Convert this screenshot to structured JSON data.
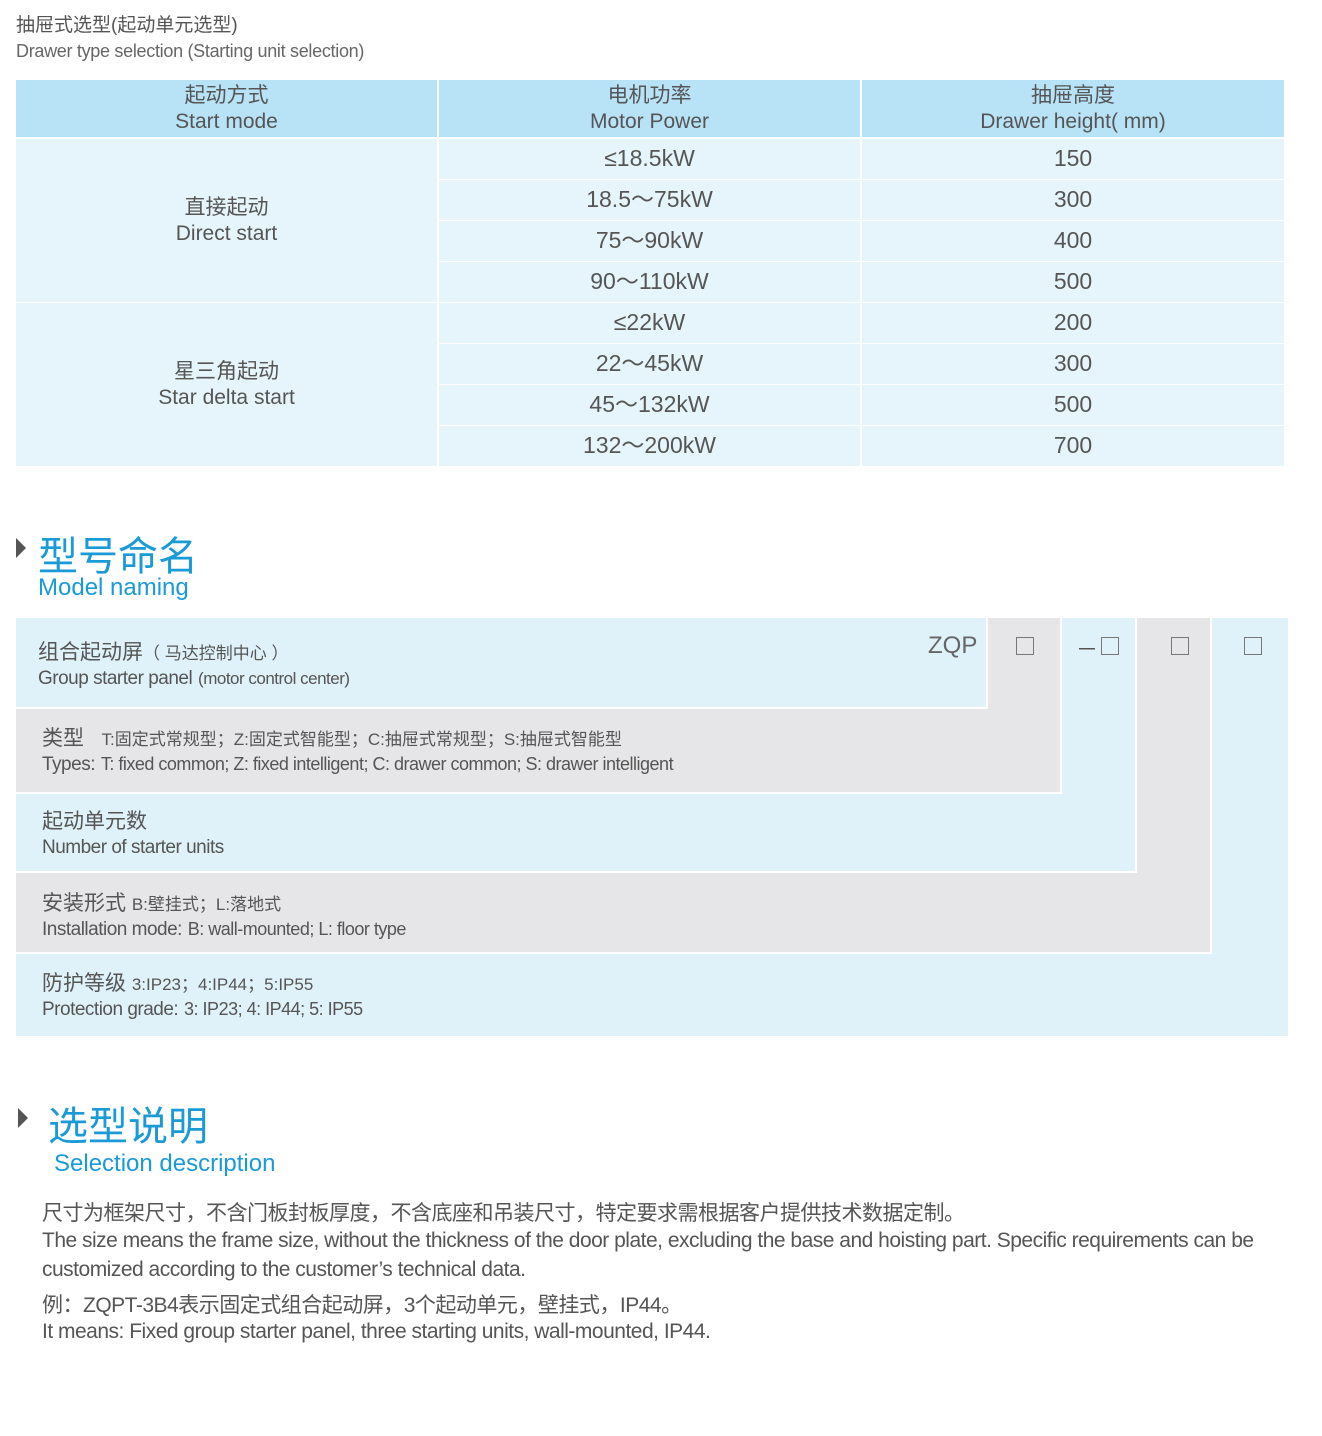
{
  "heading": {
    "cn": "抽屉式选型(起动单元选型)",
    "en": "Drawer type selection (Starting unit selection)"
  },
  "table": {
    "headers": [
      {
        "cn": "起动方式",
        "en": "Start mode"
      },
      {
        "cn": "电机功率",
        "en": "Motor Power"
      },
      {
        "cn": "抽屉高度",
        "en": "Drawer height( mm)"
      }
    ],
    "groups": [
      {
        "cn": "直接起动",
        "en": "Direct start",
        "rows": [
          [
            "≤18.5kW",
            "150"
          ],
          [
            "18.5～75kW",
            "300"
          ],
          [
            "75～90kW",
            "400"
          ],
          [
            "90～110kW",
            "500"
          ]
        ]
      },
      {
        "cn": "星三角起动",
        "en": "Star delta start",
        "rows": [
          [
            "≤22kW",
            "200"
          ],
          [
            "22～45kW",
            "300"
          ],
          [
            "45～132kW",
            "500"
          ],
          [
            "132～200kW",
            "700"
          ]
        ]
      }
    ]
  },
  "model_naming": {
    "title_cn": "型号命名",
    "title_en": "Model naming",
    "code_prefix": "ZQP",
    "dash": "－",
    "rows": [
      {
        "cn": "组合起动屏",
        "cn_note": "（ 马达控制中心 ）",
        "en": "Group starter panel",
        "en_note": "(motor control center)"
      },
      {
        "cn": "类型",
        "cn_note": "T:固定式常规型；Z:固定式智能型；C:抽屉式常规型；S:抽屉式智能型",
        "en": "Types:",
        "en_note": "T: fixed common; Z: fixed intelligent; C: drawer common; S: drawer intelligent"
      },
      {
        "cn": "起动单元数",
        "cn_note": "",
        "en": "Number of starter units",
        "en_note": ""
      },
      {
        "cn": "安装形式",
        "cn_note": "B:壁挂式；L:落地式",
        "en": "Installation mode:",
        "en_note": "B: wall-mounted; L: floor type"
      },
      {
        "cn": "防护等级",
        "cn_note": "3:IP23；4:IP44；5:IP55",
        "en": "Protection grade:",
        "en_note": "3: IP23; 4: IP44; 5: IP55"
      }
    ],
    "colors": {
      "light": "#dff2fa",
      "gray": "#e6e6e8",
      "accent": "#1a9ad6"
    }
  },
  "selection": {
    "title_cn": "选型说明",
    "title_en": "Selection description",
    "lines": [
      "尺寸为框架尺寸，不含门板封板厚度，不含底座和吊装尺寸，特定要求需根据客户提供技术数据定制。",
      "The size means the frame size, without the thickness of the door plate, excluding the base and hoisting part. Specific requirements can be",
      "customized according to the customer’s technical data.",
      "例：ZQPT-3B4表示固定式组合起动屏，3个起动单元，壁挂式，IP44。",
      "It means: Fixed group starter panel, three starting units, wall-mounted, IP44."
    ]
  }
}
